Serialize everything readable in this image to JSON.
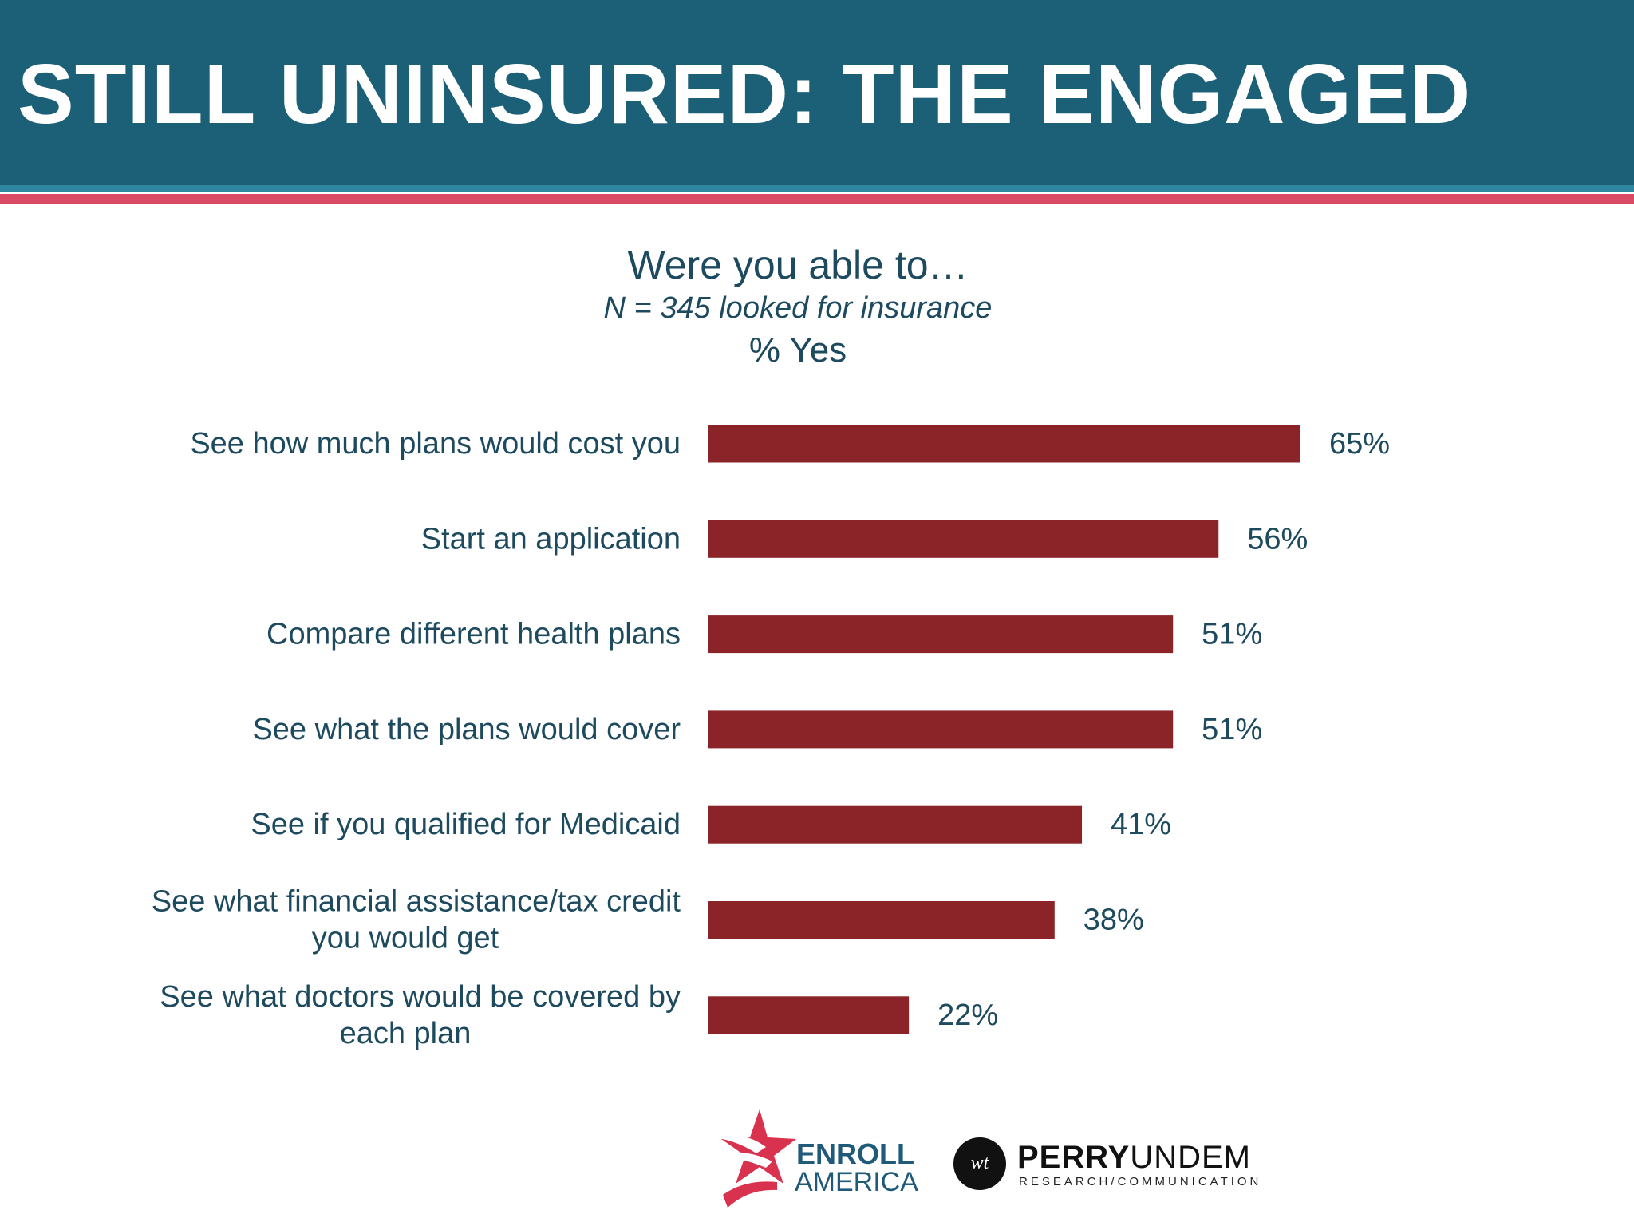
{
  "header": {
    "title": "STILL UNINSURED: THE ENGAGED"
  },
  "colors": {
    "header_bg": "#1c6077",
    "stripe_teal": "#2e86a0",
    "stripe_red": "#d94a64",
    "bar": "#8b2429",
    "text": "#1d4a5e"
  },
  "chart_data": {
    "type": "bar",
    "orientation": "horizontal",
    "title": "Were you able to…",
    "subtitle": "N = 345 looked for insurance",
    "measure_label": "% Yes",
    "categories": [
      "See how much plans would cost you",
      "Start an application",
      "Compare different health plans",
      "See what the plans would cover",
      "See if you qualified for Medicaid",
      "See what financial assistance/tax credit you would get",
      "See what doctors would be covered by each plan"
    ],
    "category_lines": [
      [
        "See how much plans would cost you"
      ],
      [
        "Start an application"
      ],
      [
        "Compare different health plans"
      ],
      [
        "See what the plans would cover"
      ],
      [
        "See if you qualified for Medicaid"
      ],
      [
        "See what financial assistance/tax credit",
        "you would get"
      ],
      [
        "See what doctors would be covered by",
        "each plan"
      ]
    ],
    "values": [
      65,
      56,
      51,
      51,
      41,
      38,
      22
    ],
    "value_labels": [
      "65%",
      "56%",
      "51%",
      "51%",
      "41%",
      "38%",
      "22%"
    ],
    "xlim": [
      0,
      65
    ],
    "grid": false,
    "legend": "none"
  },
  "logos": {
    "enroll_line1": "ENROLL",
    "enroll_line2": "AMERICA",
    "perry_part1": "PERRY",
    "perry_part2": "UNDEM",
    "perry_tagline": "RESEARCH/COMMUNICATION",
    "perry_monogram": "wt"
  }
}
